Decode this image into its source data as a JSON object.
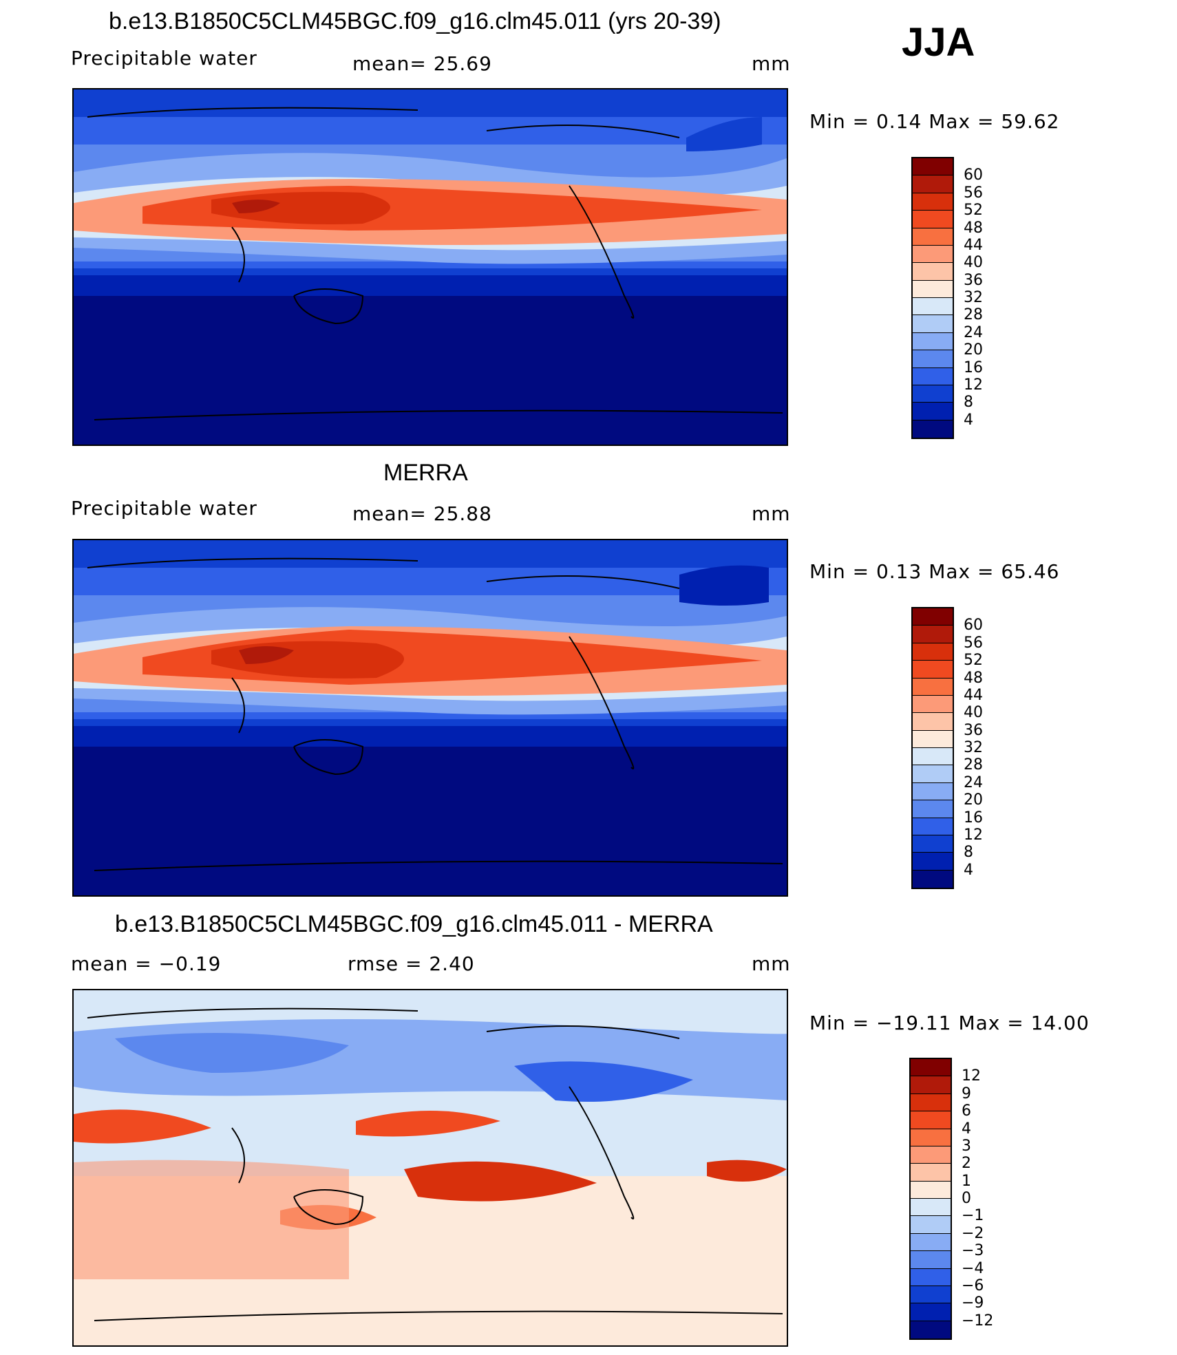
{
  "season": "JJA",
  "panels": [
    {
      "id": "model",
      "title": "b.e13.B1850C5CLM45BGC.f09_g16.clm45.011 (yrs 20-39)",
      "left_label": "Precipitable  water",
      "center_label": "mean=   25.69",
      "units": "mm",
      "minmax": "Min  =     0.14  Max  =    59.62",
      "colorbar": {
        "labels": [
          "60",
          "56",
          "52",
          "48",
          "44",
          "40",
          "36",
          "32",
          "28",
          "24",
          "20",
          "16",
          "12",
          "8",
          "4"
        ],
        "colors": [
          "#800000",
          "#b01a0a",
          "#d8300c",
          "#f04a20",
          "#f87040",
          "#fc9a78",
          "#fdc4a8",
          "#fdeadb",
          "#d8e8f8",
          "#b0ccf6",
          "#88acf4",
          "#5c88ee",
          "#3060e8",
          "#1040d0",
          "#0020b0",
          "#000a80"
        ]
      }
    },
    {
      "id": "obs",
      "title": "MERRA",
      "left_label": "Precipitable  water",
      "center_label": "mean=   25.88",
      "units": "mm",
      "minmax": "Min  =     0.13  Max  =    65.46",
      "colorbar": {
        "labels": [
          "60",
          "56",
          "52",
          "48",
          "44",
          "40",
          "36",
          "32",
          "28",
          "24",
          "20",
          "16",
          "12",
          "8",
          "4"
        ],
        "colors": [
          "#800000",
          "#b01a0a",
          "#d8300c",
          "#f04a20",
          "#f87040",
          "#fc9a78",
          "#fdc4a8",
          "#fdeadb",
          "#d8e8f8",
          "#b0ccf6",
          "#88acf4",
          "#5c88ee",
          "#3060e8",
          "#1040d0",
          "#0020b0",
          "#000a80"
        ]
      }
    },
    {
      "id": "diff",
      "title": "b.e13.B1850C5CLM45BGC.f09_g16.clm45.011 - MERRA",
      "left_label": "mean  =    −0.19",
      "center_label": "rmse  =     2.40",
      "units": "mm",
      "minmax": "Min  = −19.11  Max  =    14.00",
      "colorbar": {
        "labels": [
          "12",
          "9",
          "6",
          "4",
          "3",
          "2",
          "1",
          "0",
          "−1",
          "−2",
          "−3",
          "−4",
          "−6",
          "−9",
          "−12"
        ],
        "colors": [
          "#800000",
          "#b01a0a",
          "#d8300c",
          "#f04a20",
          "#f87040",
          "#fc9a78",
          "#fdc4a8",
          "#fdeadb",
          "#d8e8f8",
          "#b0ccf6",
          "#88acf4",
          "#5c88ee",
          "#3060e8",
          "#1040d0",
          "#0020b0",
          "#000a80"
        ]
      }
    }
  ]
}
